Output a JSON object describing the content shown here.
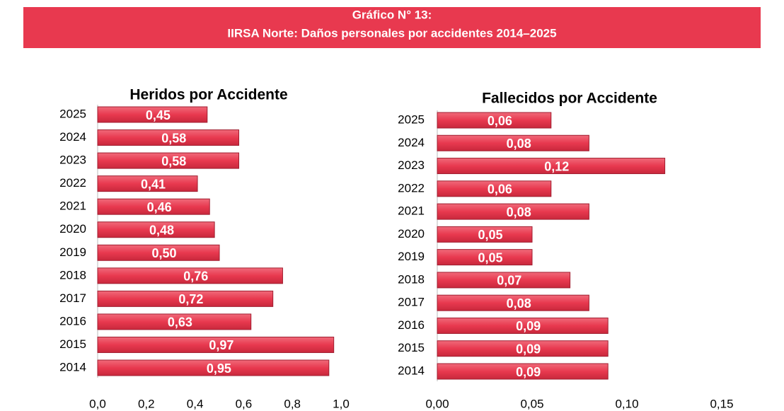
{
  "header": {
    "title": "Gráfico N° 13:",
    "subtitle": "IIRSA Norte: Daños personales por accidentes 2014–2025"
  },
  "chart_data": [
    {
      "type": "barh",
      "title": "Heridos por Accidente",
      "color": "#e8394f",
      "categories": [
        "2025",
        "2024",
        "2023",
        "2022",
        "2021",
        "2020",
        "2019",
        "2018",
        "2017",
        "2016",
        "2015",
        "2014"
      ],
      "values": [
        0.45,
        0.58,
        0.58,
        0.41,
        0.46,
        0.48,
        0.5,
        0.76,
        0.72,
        0.63,
        0.97,
        0.95
      ],
      "value_labels": [
        "0,45",
        "0,58",
        "0,58",
        "0,41",
        "0,46",
        "0,48",
        "0,50",
        "0,76",
        "0,72",
        "0,63",
        "0,97",
        "0,95"
      ],
      "xlim": [
        0,
        1.0
      ],
      "xticks": [
        {
          "value": 0,
          "label": "0,0"
        },
        {
          "value": 0.2,
          "label": "0,2"
        },
        {
          "value": 0.4,
          "label": "0,4"
        },
        {
          "value": 0.6,
          "label": "0,6"
        },
        {
          "value": 0.8,
          "label": "0,8"
        },
        {
          "value": 1.0,
          "label": "1,0"
        }
      ]
    },
    {
      "type": "barh",
      "title": "Fallecidos por Accidente",
      "color": "#e8394f",
      "categories": [
        "2025",
        "2024",
        "2023",
        "2022",
        "2021",
        "2020",
        "2019",
        "2018",
        "2017",
        "2016",
        "2015",
        "2014"
      ],
      "values": [
        0.06,
        0.08,
        0.12,
        0.06,
        0.08,
        0.05,
        0.05,
        0.07,
        0.08,
        0.09,
        0.09,
        0.09
      ],
      "value_labels": [
        "0,06",
        "0,08",
        "0,12",
        "0,06",
        "0,08",
        "0,05",
        "0,05",
        "0,07",
        "0,08",
        "0,09",
        "0,09",
        "0,09"
      ],
      "xlim": [
        0,
        0.15
      ],
      "xticks": [
        {
          "value": 0,
          "label": "0,00"
        },
        {
          "value": 0.05,
          "label": "0,05"
        },
        {
          "value": 0.1,
          "label": "0,10"
        },
        {
          "value": 0.15,
          "label": "0,15"
        }
      ]
    }
  ]
}
